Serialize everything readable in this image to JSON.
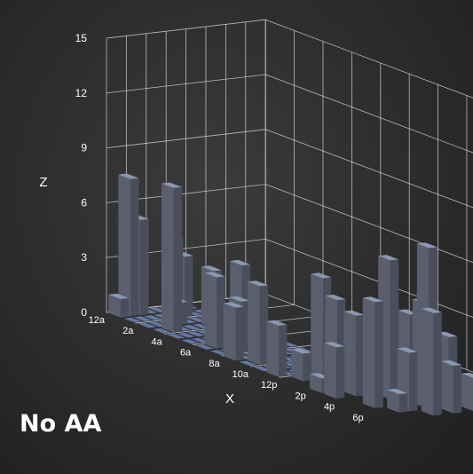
{
  "chart_data": {
    "type": "bar3d",
    "zlabel": "Z",
    "xlabel": "X",
    "zlim": [
      0,
      15
    ],
    "z_ticks": [
      "0",
      "3",
      "6",
      "9",
      "12",
      "15"
    ],
    "x_ticks": [
      "12a",
      "2a",
      "4a",
      "6a",
      "8a",
      "10a",
      "12p",
      "2p",
      "4p",
      "6p"
    ],
    "grid": true,
    "bars": [
      {
        "x": 0,
        "y": 0,
        "z": 1.0
      },
      {
        "x": 0,
        "y": 1,
        "z": 7.5
      },
      {
        "x": 0,
        "y": 2,
        "z": 5.2
      },
      {
        "x": 1,
        "y": 4,
        "z": 4.3
      },
      {
        "x": 2,
        "y": 3,
        "z": 1.2
      },
      {
        "x": 1,
        "y": 5,
        "z": 3.3
      },
      {
        "x": 4,
        "y": 4,
        "z": 0.8
      },
      {
        "x": 3,
        "y": 1,
        "z": 7.9
      },
      {
        "x": 3,
        "y": 5,
        "z": 3.1
      },
      {
        "x": 5,
        "y": 5,
        "z": 4.0
      },
      {
        "x": 6,
        "y": 1,
        "z": 3.9
      },
      {
        "x": 7,
        "y": 2,
        "z": 2.8
      },
      {
        "x": 8,
        "y": 0,
        "z": 2.9
      },
      {
        "x": 9,
        "y": 1,
        "z": 4.3
      },
      {
        "x": 11,
        "y": 0,
        "z": 2.8
      },
      {
        "x": 12,
        "y": 1,
        "z": 1.5
      },
      {
        "x": 12,
        "y": 3,
        "z": 5.5
      },
      {
        "x": 13,
        "y": 3,
        "z": 4.6
      },
      {
        "x": 14,
        "y": 0,
        "z": 0.8
      },
      {
        "x": 14,
        "y": 2,
        "z": 2.0
      },
      {
        "x": 14,
        "y": 4,
        "z": 0.6
      },
      {
        "x": 15,
        "y": 0,
        "z": 2.8
      },
      {
        "x": 15,
        "y": 2,
        "z": 4.4
      },
      {
        "x": 15,
        "y": 4,
        "z": 4.2
      },
      {
        "x": 16,
        "y": 4,
        "z": 7.6
      },
      {
        "x": 16,
        "y": 6,
        "z": 4.5
      },
      {
        "x": 17,
        "y": 1,
        "z": 5.8
      },
      {
        "x": 17,
        "y": 6,
        "z": 5.4
      },
      {
        "x": 18,
        "y": 2,
        "z": 1.0
      },
      {
        "x": 18,
        "y": 3,
        "z": 3.2
      },
      {
        "x": 18,
        "y": 5,
        "z": 8.8
      },
      {
        "x": 18,
        "y": 7,
        "z": 3.8
      },
      {
        "x": 19,
        "y": 4,
        "z": 5.6
      },
      {
        "x": 19,
        "y": 6,
        "z": 2.6
      },
      {
        "x": 19,
        "y": 8,
        "z": 1.8
      }
    ]
  },
  "overlay": {
    "aa_label": "No AA"
  },
  "colors": {
    "bar_front": "#5b5f6d",
    "bar_side": "#4a4e5a",
    "bar_top": "#8a98b4",
    "tile": "#6d84b6",
    "grid": "#e8e8e8",
    "text": "#ffffff"
  }
}
